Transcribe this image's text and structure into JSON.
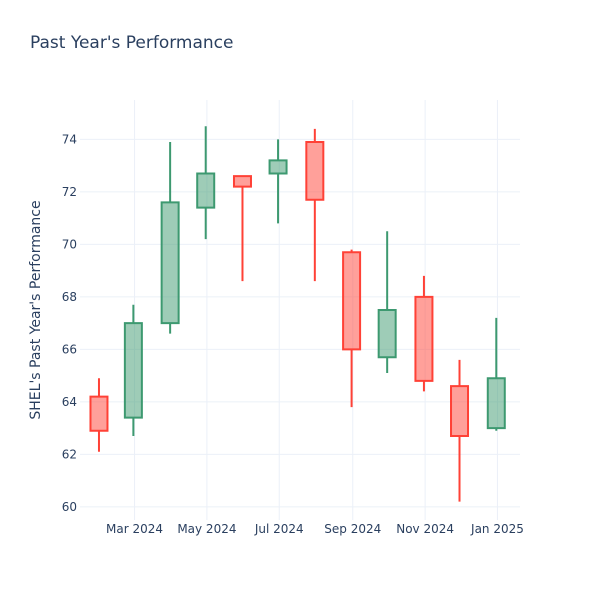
{
  "chart_data": {
    "type": "candlestick",
    "title": "Past Year's Performance",
    "xlabel": "",
    "ylabel": "SHEL's Past Year's Performance",
    "ylim": [
      59.5,
      75.5
    ],
    "xlim": [
      "2024-01-15",
      "2025-01-20"
    ],
    "y_ticks": [
      60,
      62,
      64,
      66,
      68,
      70,
      72,
      74
    ],
    "x_ticks": [
      {
        "date": "2024-03-01",
        "label": "Mar 2024"
      },
      {
        "date": "2024-05-01",
        "label": "May 2024"
      },
      {
        "date": "2024-07-01",
        "label": "Jul 2024"
      },
      {
        "date": "2024-09-01",
        "label": "Sep 2024"
      },
      {
        "date": "2024-11-01",
        "label": "Nov 2024"
      },
      {
        "date": "2025-01-01",
        "label": "Jan 2025"
      }
    ],
    "grid": true,
    "increasing_color": "#3d9970",
    "decreasing_color": "#ff4136",
    "candles": [
      {
        "date": "2024-01-31",
        "open": 64.2,
        "high": 64.9,
        "low": 62.1,
        "close": 62.9
      },
      {
        "date": "2024-02-29",
        "open": 63.4,
        "high": 67.7,
        "low": 62.7,
        "close": 67.0
      },
      {
        "date": "2024-03-31",
        "open": 67.0,
        "high": 73.9,
        "low": 66.6,
        "close": 71.6
      },
      {
        "date": "2024-04-30",
        "open": 71.4,
        "high": 74.5,
        "low": 70.2,
        "close": 72.7
      },
      {
        "date": "2024-05-31",
        "open": 72.6,
        "high": 72.6,
        "low": 68.6,
        "close": 72.2
      },
      {
        "date": "2024-06-30",
        "open": 72.7,
        "high": 74.0,
        "low": 70.8,
        "close": 73.2
      },
      {
        "date": "2024-07-31",
        "open": 73.9,
        "high": 74.4,
        "low": 68.6,
        "close": 71.7
      },
      {
        "date": "2024-08-31",
        "open": 69.7,
        "high": 69.8,
        "low": 63.8,
        "close": 66.0
      },
      {
        "date": "2024-09-30",
        "open": 65.7,
        "high": 70.5,
        "low": 65.1,
        "close": 67.5
      },
      {
        "date": "2024-10-31",
        "open": 68.0,
        "high": 68.8,
        "low": 64.4,
        "close": 64.8
      },
      {
        "date": "2024-11-30",
        "open": 64.6,
        "high": 65.6,
        "low": 60.2,
        "close": 62.7
      },
      {
        "date": "2024-12-31",
        "open": 63.0,
        "high": 67.2,
        "low": 62.9,
        "close": 64.9
      }
    ]
  }
}
